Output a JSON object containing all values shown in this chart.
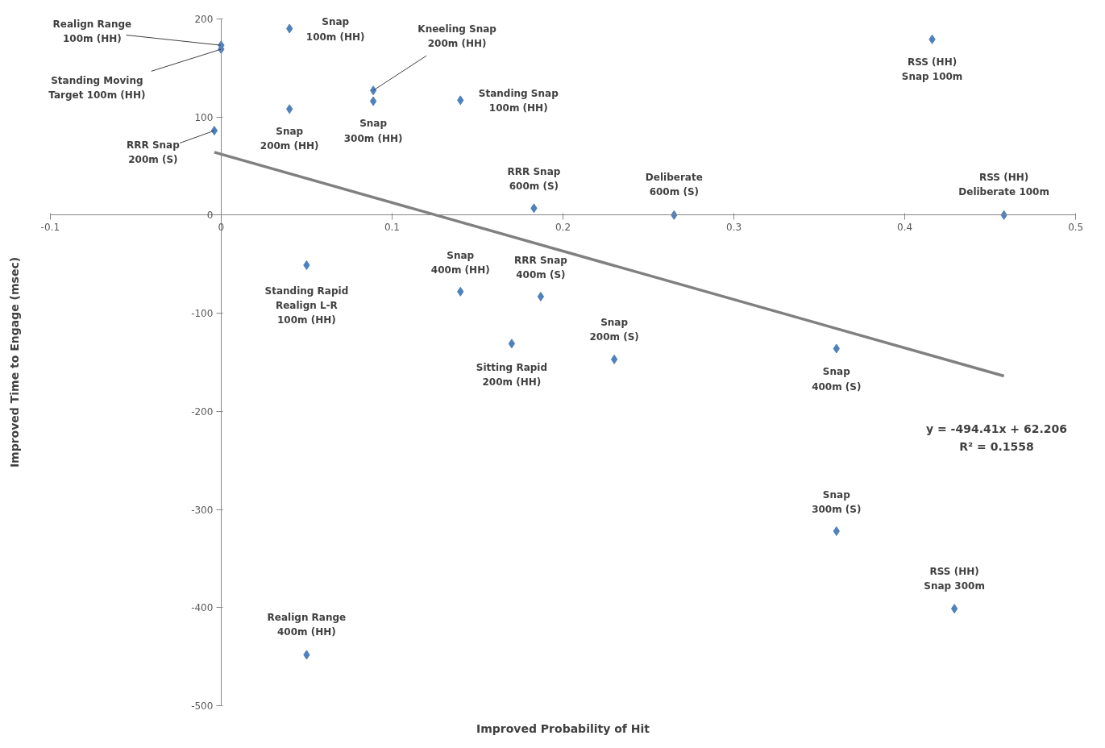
{
  "chart_data": {
    "type": "scatter",
    "xlabel": "Improved Probability of Hit",
    "ylabel": "Improved Time to Engage (msec)",
    "xlim": [
      -0.1,
      0.5
    ],
    "ylim": [
      -500,
      200
    ],
    "xticks": [
      -0.1,
      0,
      0.1,
      0.2,
      0.3,
      0.4,
      0.5
    ],
    "yticks": [
      -500,
      -400,
      -300,
      -200,
      -100,
      0,
      100,
      200
    ],
    "grid": false,
    "series": [
      {
        "marker": "diamond",
        "color": "#4f81bd",
        "x": [
          0,
          0,
          -0.004,
          0.04,
          0.04,
          0.089,
          0.089,
          0.14,
          0.183,
          0.265,
          0.416,
          0.458,
          0.05,
          0.14,
          0.187,
          0.17,
          0.23,
          0.36,
          0.36,
          0.429,
          0.05
        ],
        "values": [
          173,
          169,
          86,
          190,
          108,
          127,
          116,
          117,
          7,
          0,
          179,
          0,
          -51,
          -78,
          -83,
          -131,
          -147,
          -136,
          -322,
          -401,
          -448
        ]
      },
      {
        "type": "line",
        "color": "#808080",
        "x": [
          -0.004,
          0.458
        ],
        "values": [
          64,
          -164
        ]
      }
    ],
    "annotations": [
      {
        "text": "Realign Range\n100m (HH)",
        "x": 0,
        "y": 173
      },
      {
        "text": "Standing Moving\nTarget 100m (HH)",
        "x": 0,
        "y": 169
      },
      {
        "text": "RRR Snap\n200m (S)",
        "x": -0.004,
        "y": 86
      },
      {
        "text": "Snap\n100m (HH)",
        "x": 0.04,
        "y": 190
      },
      {
        "text": "Snap\n200m (HH)",
        "x": 0.04,
        "y": 108
      },
      {
        "text": "Kneeling Snap\n200m (HH)",
        "x": 0.089,
        "y": 127
      },
      {
        "text": "Snap\n300m (HH)",
        "x": 0.089,
        "y": 116
      },
      {
        "text": "Standing Snap\n100m (HH)",
        "x": 0.14,
        "y": 117
      },
      {
        "text": "RRR Snap\n600m (S)",
        "x": 0.183,
        "y": 7
      },
      {
        "text": "Deliberate\n600m (S)",
        "x": 0.265,
        "y": 0
      },
      {
        "text": "RSS (HH)\nSnap 100m",
        "x": 0.416,
        "y": 179
      },
      {
        "text": "RSS (HH)\nDeliberate 100m",
        "x": 0.458,
        "y": 0
      },
      {
        "text": "Standing Rapid\nRealign L-R\n100m (HH)",
        "x": 0.05,
        "y": -51
      },
      {
        "text": "Snap\n400m (HH)",
        "x": 0.14,
        "y": -78
      },
      {
        "text": "RRR Snap\n400m (S)",
        "x": 0.187,
        "y": -83
      },
      {
        "text": "Sitting Rapid\n200m (HH)",
        "x": 0.17,
        "y": -131
      },
      {
        "text": "Snap\n200m (S)",
        "x": 0.23,
        "y": -147
      },
      {
        "text": "Snap\n400m (S)",
        "x": 0.36,
        "y": -136
      },
      {
        "text": "Snap\n300m (S)",
        "x": 0.36,
        "y": -322
      },
      {
        "text": "RSS (HH)\nSnap 300m",
        "x": 0.429,
        "y": -401
      },
      {
        "text": "Realign Range\n400m (HH)",
        "x": 0.05,
        "y": -448
      },
      "y = -494.41x + 62.206\nR² = 0.1558"
    ]
  }
}
